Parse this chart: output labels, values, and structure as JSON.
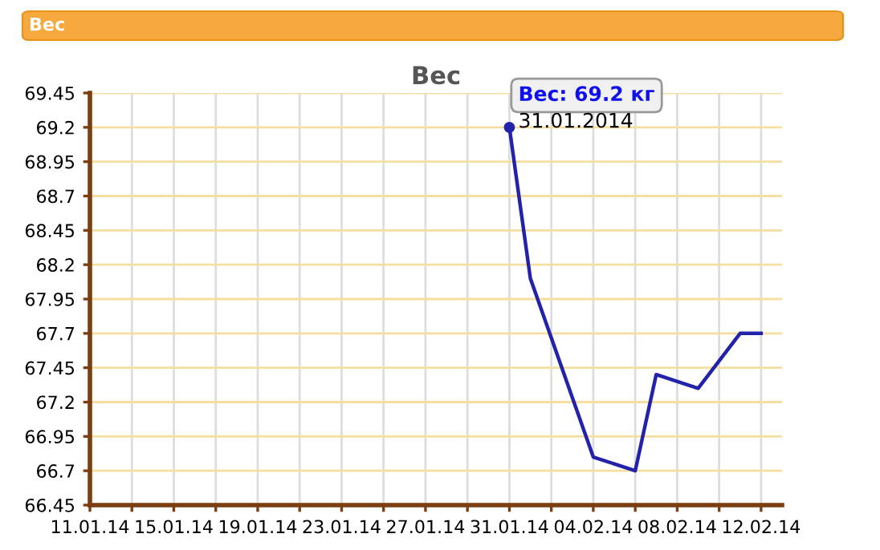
{
  "chart_data": {
    "type": "line",
    "title": "Вес",
    "annotations": [
      "Вес",
      {
        "text": "Вес: 69.2 кг\n31.01.2014",
        "x": "2014-01-31",
        "y": 69.2
      }
    ],
    "x": [
      "2014-01-31",
      "2014-02-01",
      "2014-02-04",
      "2014-02-06",
      "2014-02-07",
      "2014-02-09",
      "2014-02-11",
      "2014-02-12"
    ],
    "series": [
      {
        "color": "#2222aa",
        "values": [
          69.2,
          68.1,
          66.8,
          66.7,
          67.4,
          67.3,
          67.7,
          67.7
        ]
      }
    ],
    "xlim": [
      "2014-01-11",
      "2014-02-13"
    ],
    "xticks": [
      {
        "value": "2014-01-11",
        "label": "11.01.14"
      },
      {
        "value": "2014-01-13",
        "label": null
      },
      {
        "value": "2014-01-15",
        "label": "15.01.14"
      },
      {
        "value": "2014-01-17",
        "label": null
      },
      {
        "value": "2014-01-19",
        "label": "19.01.14"
      },
      {
        "value": "2014-01-21",
        "label": null
      },
      {
        "value": "2014-01-23",
        "label": "23.01.14"
      },
      {
        "value": "2014-01-25",
        "label": null
      },
      {
        "value": "2014-01-27",
        "label": "27.01.14"
      },
      {
        "value": "2014-01-29",
        "label": null
      },
      {
        "value": "2014-01-31",
        "label": "31.01.14"
      },
      {
        "value": "2014-02-02",
        "label": null
      },
      {
        "value": "2014-02-04",
        "label": "04.02.14"
      },
      {
        "value": "2014-02-06",
        "label": null
      },
      {
        "value": "2014-02-08",
        "label": "08.02.14"
      },
      {
        "value": "2014-02-10",
        "label": null
      },
      {
        "value": "2014-02-12",
        "label": "12.02.14"
      }
    ],
    "ylim": [
      66.45,
      69.45
    ],
    "yticks": [
      66.45,
      66.7,
      66.95,
      67.2,
      67.45,
      67.7,
      67.95,
      68.2,
      68.45,
      68.7,
      68.95,
      69.2,
      69.45
    ],
    "grid": true,
    "legend": false,
    "marker": "none",
    "line_style": "solid"
  }
}
